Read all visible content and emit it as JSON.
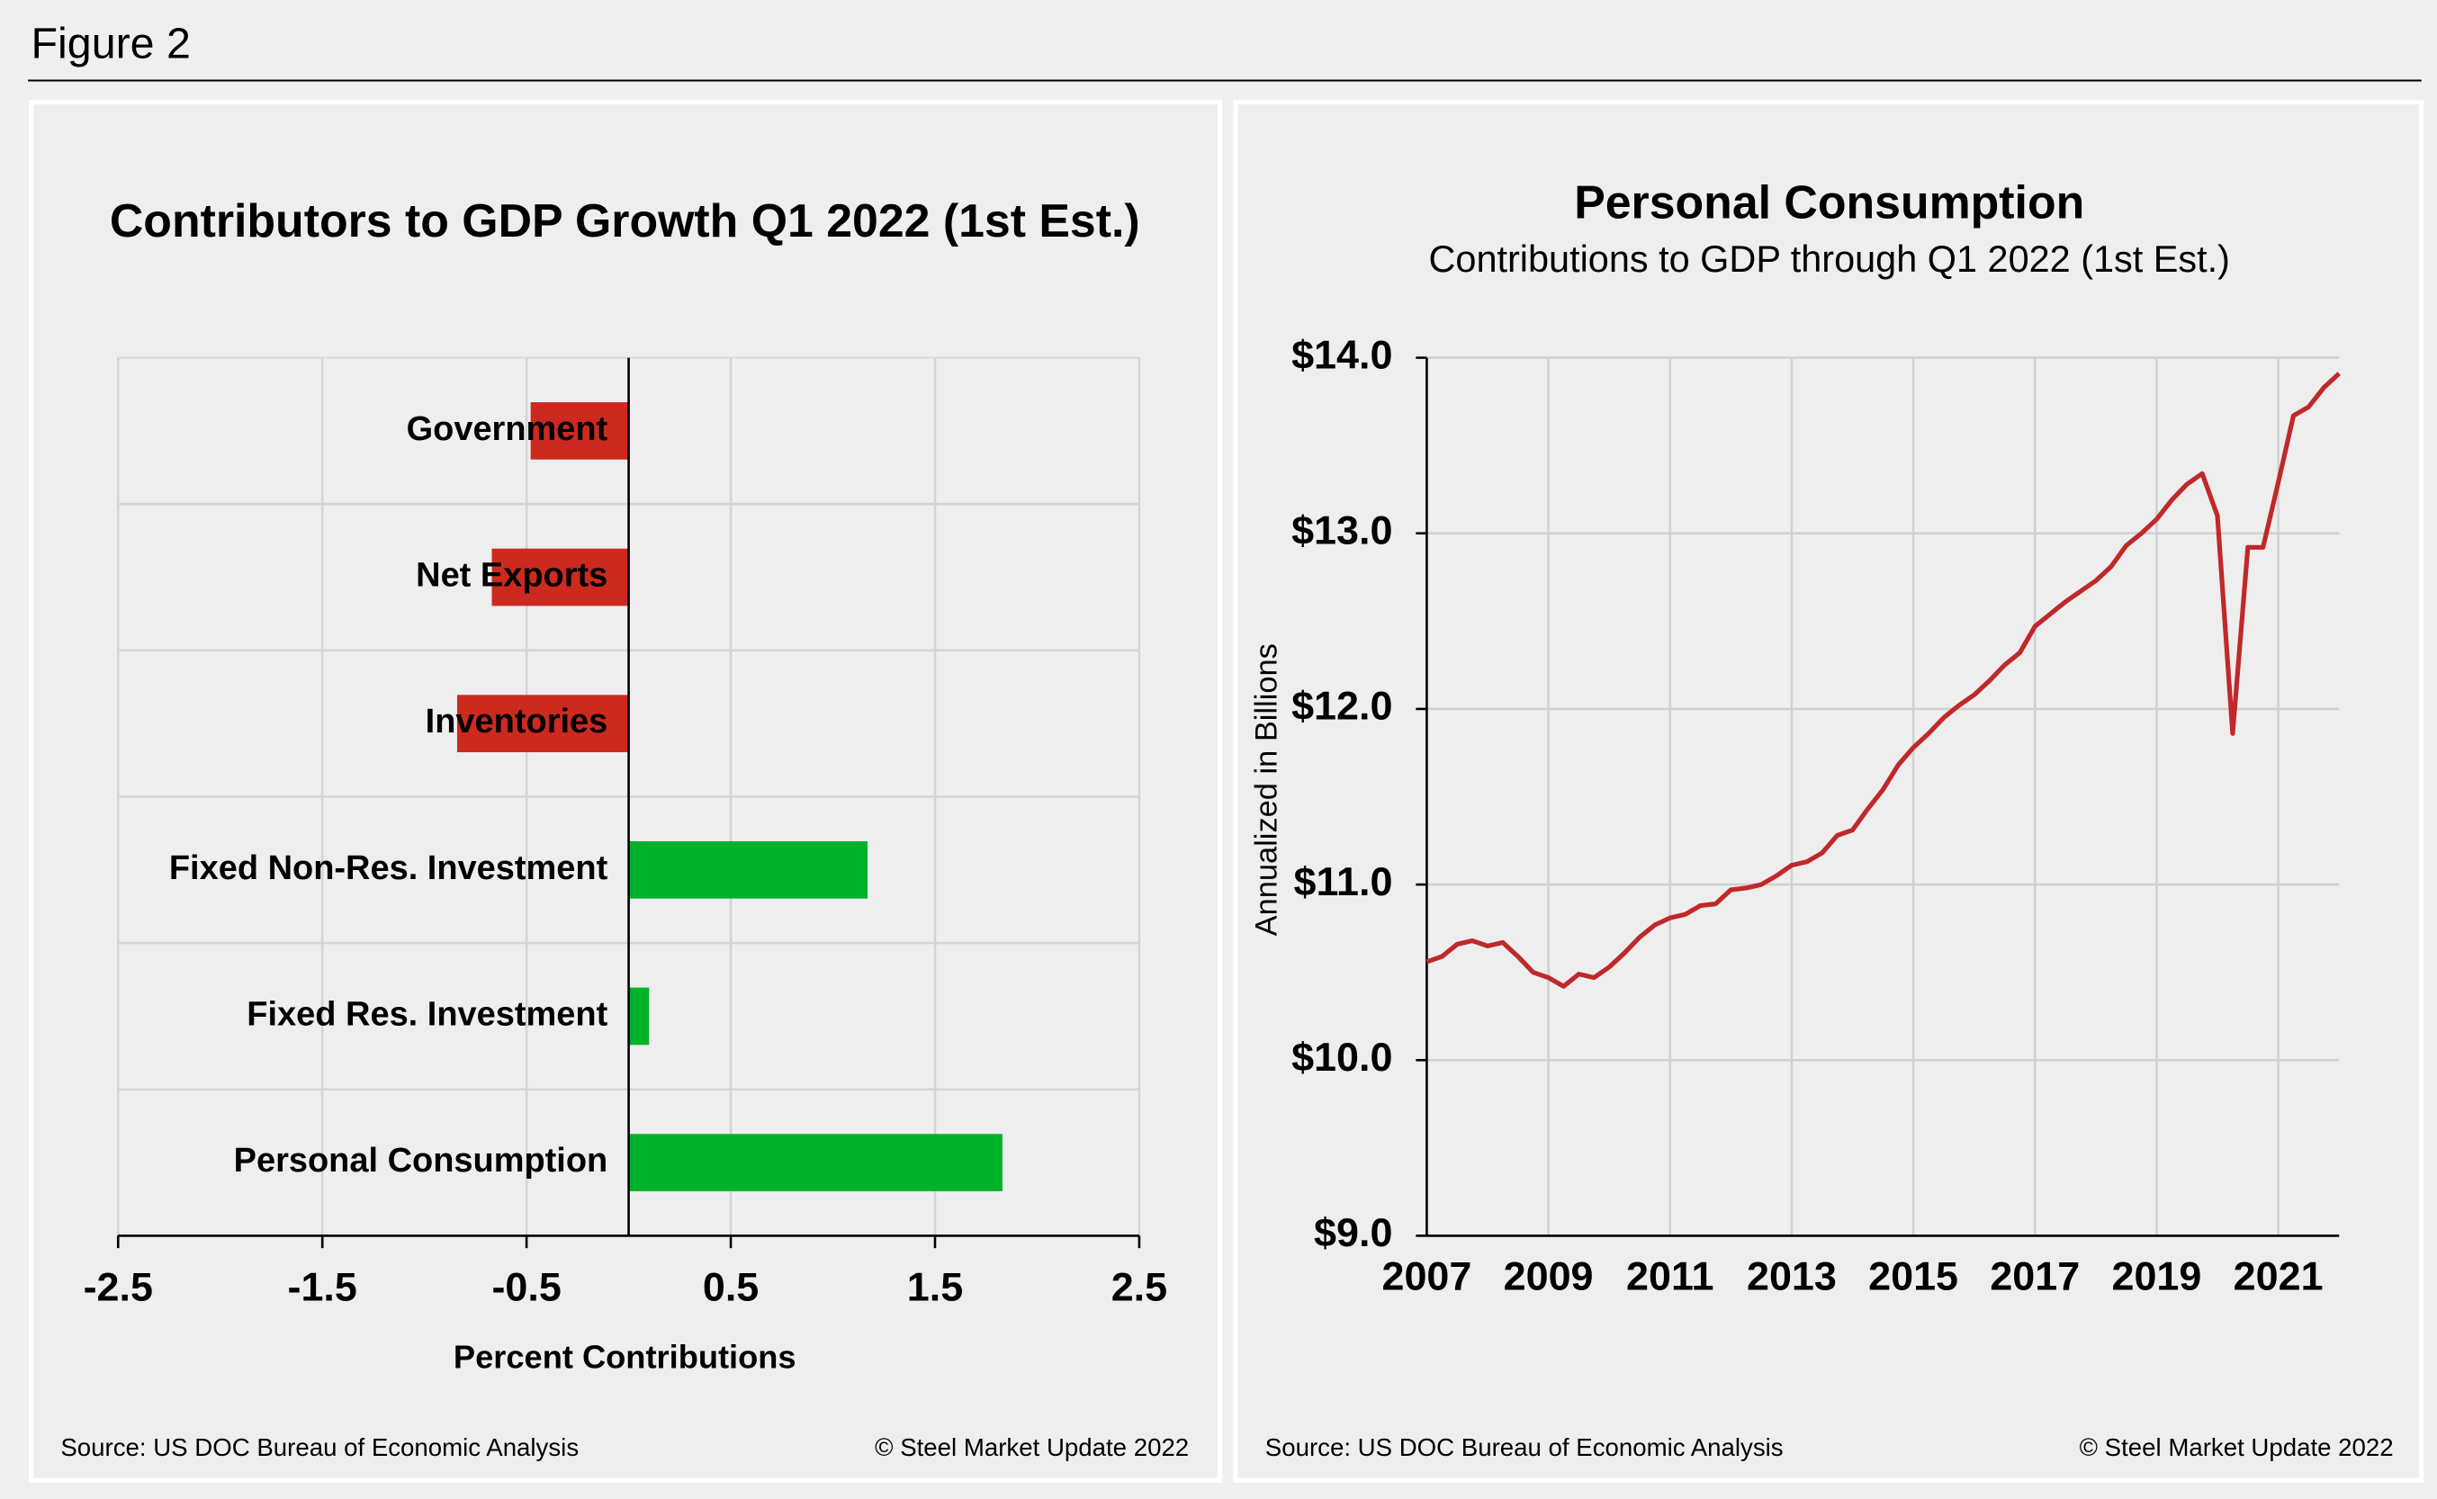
{
  "figure_title": "Figure 2",
  "chart_data": [
    {
      "type": "barh",
      "title": "Contributors to GDP Growth Q1 2022 (1st Est.)",
      "categories": [
        "Government",
        "Net Exports",
        "Inventories",
        "Fixed Non-Res. Investment",
        "Fixed Res. Investment",
        "Personal Consumption"
      ],
      "values": [
        -0.48,
        -0.67,
        -0.84,
        1.17,
        0.1,
        1.83
      ],
      "colors": [
        "#cc2a1f",
        "#cc2a1f",
        "#cc2a1f",
        "#00b22a",
        "#00b22a",
        "#00b22a"
      ],
      "xlabel": "Percent Contributions",
      "xlim": [
        -2.5,
        2.5
      ],
      "xticks": [
        -2.5,
        -1.5,
        -0.5,
        0.5,
        1.5,
        2.5
      ],
      "grid": true,
      "source": "Source: US DOC Bureau of Economic Analysis",
      "credit": "© Steel Market Update 2022"
    },
    {
      "type": "line",
      "title": "Personal Consumption",
      "subtitle": "Contributions to GDP through Q1 2022 (1st Est.)",
      "ylabel": "Annualized in Billions",
      "x": [
        2007,
        2007.25,
        2007.5,
        2007.75,
        2008,
        2008.25,
        2008.5,
        2008.75,
        2009,
        2009.25,
        2009.5,
        2009.75,
        2010,
        2010.25,
        2010.5,
        2010.75,
        2011,
        2011.25,
        2011.5,
        2011.75,
        2012,
        2012.25,
        2012.5,
        2012.75,
        2013,
        2013.25,
        2013.5,
        2013.75,
        2014,
        2014.25,
        2014.5,
        2014.75,
        2015,
        2015.25,
        2015.5,
        2015.75,
        2016,
        2016.25,
        2016.5,
        2016.75,
        2017,
        2017.25,
        2017.5,
        2017.75,
        2018,
        2018.25,
        2018.5,
        2018.75,
        2019,
        2019.25,
        2019.5,
        2019.75,
        2020,
        2020.25,
        2020.5,
        2020.75,
        2021,
        2021.25,
        2021.5,
        2021.75,
        2022
      ],
      "series": [
        {
          "name": "Personal Consumption",
          "color": "#c0282a",
          "values": [
            10.56,
            10.59,
            10.66,
            10.68,
            10.65,
            10.67,
            10.59,
            10.5,
            10.47,
            10.42,
            10.49,
            10.47,
            10.53,
            10.61,
            10.7,
            10.77,
            10.81,
            10.83,
            10.88,
            10.89,
            10.97,
            10.98,
            11.0,
            11.05,
            11.11,
            11.13,
            11.18,
            11.28,
            11.31,
            11.43,
            11.54,
            11.68,
            11.78,
            11.86,
            11.95,
            12.02,
            12.08,
            12.16,
            12.25,
            12.32,
            12.47,
            12.54,
            12.61,
            12.67,
            12.73,
            12.81,
            12.93,
            13.0,
            13.08,
            13.19,
            13.28,
            13.34,
            13.1,
            11.86,
            12.92,
            12.92,
            13.29,
            13.67,
            13.72,
            13.83,
            13.91
          ]
        }
      ],
      "xlim": [
        2007,
        2022
      ],
      "xticks": [
        2007,
        2009,
        2011,
        2013,
        2015,
        2017,
        2019,
        2021
      ],
      "ylim": [
        9,
        14
      ],
      "yticks": [
        {
          "value": 9,
          "label": "$9.0"
        },
        {
          "value": 10,
          "label": "$10.0"
        },
        {
          "value": 11,
          "label": "$11.0"
        },
        {
          "value": 12,
          "label": "$12.0"
        },
        {
          "value": 13,
          "label": "$13.0"
        },
        {
          "value": 14,
          "label": "$14.0"
        }
      ],
      "grid": true,
      "source": "Source: US DOC Bureau of Economic Analysis",
      "credit": "© Steel Market Update 2022"
    }
  ]
}
